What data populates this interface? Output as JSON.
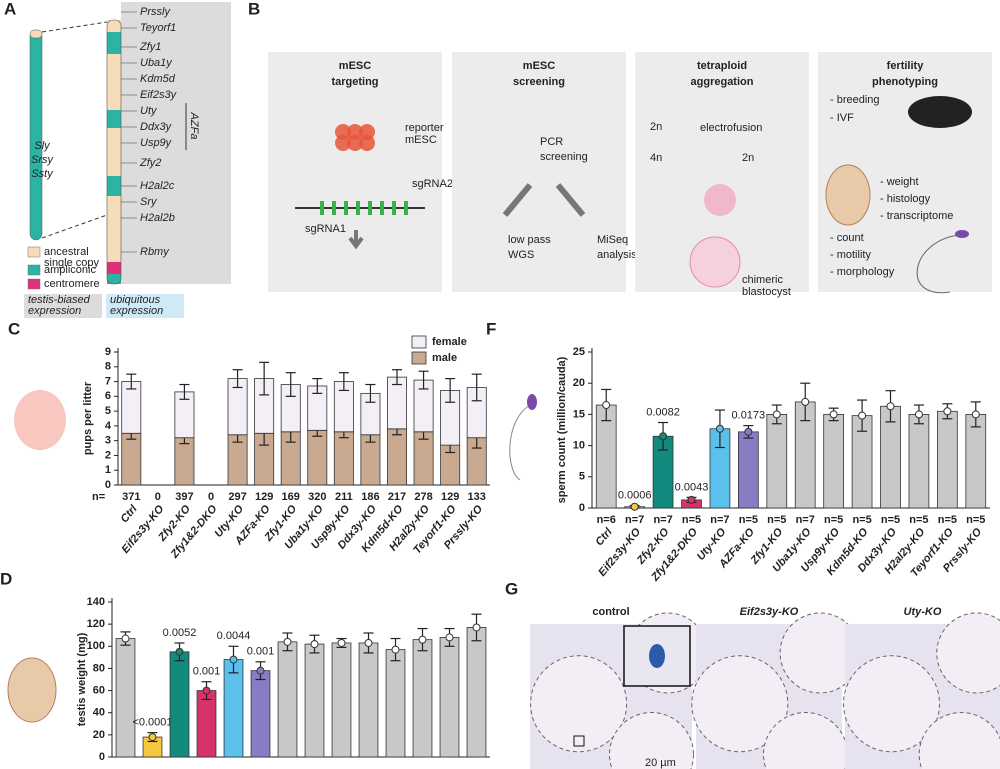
{
  "panels": {
    "A": {
      "label": "A",
      "left_genes": [
        "Sly",
        "Srsy",
        "Ssty"
      ],
      "genes": [
        {
          "name": "Prssly",
          "color": "#222222"
        },
        {
          "name": "Teyorf1",
          "color": "#222222"
        },
        {
          "name": "Zfy1",
          "color": "#222222"
        },
        {
          "name": "Uba1y",
          "color": "#222222"
        },
        {
          "name": "Kdm5d",
          "color": "#3aa8e0"
        },
        {
          "name": "Eif2s3y",
          "color": "#3aa8e0"
        },
        {
          "name": "Uty",
          "color": "#3aa8e0"
        },
        {
          "name": "Ddx3y",
          "color": "#3aa8e0"
        },
        {
          "name": "Usp9y",
          "color": "#222222"
        },
        {
          "name": "Zfy2",
          "color": "#222222"
        },
        {
          "name": "H2al2c",
          "color": "#222222"
        },
        {
          "name": "Sry",
          "color": "#222222"
        },
        {
          "name": "H2al2b",
          "color": "#222222"
        },
        {
          "name": "Rbmy",
          "color": "#222222"
        }
      ],
      "region": "AZFa",
      "legend": [
        {
          "lines": [
            "ancestral",
            "single copy"
          ],
          "color": "#f6dcb8"
        },
        {
          "lines": [
            "ampliconic"
          ],
          "color": "#2bb3a3"
        },
        {
          "lines": [
            "centromere"
          ],
          "color": "#e0307a"
        }
      ],
      "expression": [
        {
          "lines": [
            "testis-biased",
            "expression"
          ],
          "color": "#dcdcdc"
        },
        {
          "lines": [
            "ubiquitous",
            "expression"
          ],
          "color": "#cfe9f7"
        }
      ]
    },
    "B": {
      "label": "B",
      "steps": [
        {
          "title": [
            "mESC",
            "targeting"
          ],
          "texts": [
            "reporter",
            "mESC",
            "sgRNA2",
            "sgRNA1"
          ]
        },
        {
          "title": [
            "mESC",
            "screening"
          ],
          "texts": [
            "PCR",
            "screening",
            "low pass",
            "WGS",
            "MiSeq",
            "analysis"
          ]
        },
        {
          "title": [
            "tetraploid",
            "aggregation"
          ],
          "texts": [
            "2n",
            "electrofusion",
            "4n",
            "2n",
            "chimeric",
            "blastocyst"
          ]
        },
        {
          "title": [
            "fertility",
            "phenotyping"
          ],
          "texts": [
            "- breeding",
            "- IVF",
            "- weight",
            "- histology",
            "- transcriptome",
            "- count",
            "- motility",
            "- morphology"
          ]
        }
      ]
    },
    "G": {
      "label": "G",
      "images": [
        "control",
        "Eif2s3y-KO",
        "Uty-KO"
      ],
      "scale_bar": "20 µm"
    }
  },
  "chart_data": [
    {
      "type": "stacked_bar",
      "panel_label": "C",
      "ylabel": "pups per litter",
      "categories": [
        "Ctrl",
        "Eif2s3y-KO",
        "Zfy2-KO",
        "Zfy1&2-DKO",
        "Uty-KO",
        "AZFa-KO",
        "Zfy1-KO",
        "Uba1y-KO",
        "Usp9y-KO",
        "Ddx3y-KO",
        "Kdm5d-KO",
        "H2al2y-KO",
        "Teyorf1-KO",
        "Prssly-KO"
      ],
      "n_label": "n=",
      "n": [
        371,
        0,
        397,
        0,
        297,
        129,
        169,
        320,
        211,
        186,
        217,
        278,
        129,
        133
      ],
      "series": [
        {
          "name": "female",
          "color": "#f4eff7",
          "values": [
            3.5,
            null,
            3.1,
            null,
            3.8,
            3.7,
            3.2,
            3.0,
            3.4,
            2.8,
            3.5,
            3.5,
            3.7,
            3.4
          ],
          "errors": [
            0.5,
            null,
            0.5,
            null,
            0.6,
            1.1,
            0.8,
            0.5,
            0.6,
            0.6,
            0.5,
            0.6,
            0.8,
            0.9
          ]
        },
        {
          "name": "male",
          "color": "#c9aa90",
          "values": [
            3.5,
            null,
            3.2,
            null,
            3.4,
            3.5,
            3.6,
            3.7,
            3.6,
            3.4,
            3.8,
            3.6,
            2.7,
            3.2
          ],
          "errors": [
            0.4,
            null,
            0.4,
            null,
            0.5,
            0.8,
            0.7,
            0.4,
            0.4,
            0.5,
            0.4,
            0.5,
            0.5,
            0.7
          ]
        }
      ],
      "ylim": [
        0,
        9
      ],
      "yticks": [
        0,
        1,
        2,
        3,
        4,
        5,
        6,
        7,
        8,
        9
      ],
      "legend": "top-right"
    },
    {
      "type": "bar",
      "panel_label": "F",
      "ylabel": "sperm count (million/cauda)",
      "categories": [
        "Ctrl",
        "Eif2s3y-KO",
        "Zfy2-KO",
        "Zfy1&2-DKO",
        "Uty-KO",
        "AZFa-KO",
        "Zfy1-KO",
        "Uba1y-KO",
        "Usp9y-KO",
        "Kdm5d-KO",
        "Ddx3y-KO",
        "H2al2y-KO",
        "Teyorf1-KO",
        "Prssly-KO"
      ],
      "n_labels": [
        "n=6",
        "n=7",
        "n=7",
        "n=5",
        "n=7",
        "n=5",
        "n=5",
        "n=7",
        "n=5",
        "n=5",
        "n=5",
        "n=5",
        "n=5",
        "n=5"
      ],
      "values": [
        16.5,
        0.2,
        11.5,
        1.3,
        12.7,
        12.2,
        15.0,
        17.0,
        15.0,
        14.8,
        16.3,
        15.0,
        15.5,
        15.0
      ],
      "errors": [
        2.5,
        0.2,
        2.2,
        0.4,
        3.0,
        1.0,
        1.5,
        3.0,
        1.0,
        2.5,
        2.5,
        1.5,
        1.2,
        2.0
      ],
      "colors": [
        "#c8c8c8",
        "#f5c842",
        "#138a7e",
        "#d6336c",
        "#5bc0eb",
        "#8a7cc4",
        "#c8c8c8",
        "#c8c8c8",
        "#c8c8c8",
        "#c8c8c8",
        "#c8c8c8",
        "#c8c8c8",
        "#c8c8c8",
        "#c8c8c8"
      ],
      "annotations": [
        null,
        "0.0006",
        "0.0082",
        "0.0043",
        null,
        "0.0173",
        null,
        null,
        null,
        null,
        null,
        null,
        null,
        null
      ],
      "ylim": [
        0,
        25
      ],
      "yticks": [
        0,
        5,
        10,
        15,
        20,
        25
      ]
    },
    {
      "type": "bar",
      "panel_label": "D",
      "ylabel": "testis weight (mg)",
      "values": [
        107,
        18,
        95,
        60,
        88,
        78,
        104,
        102,
        103,
        103,
        97,
        106,
        108,
        117
      ],
      "errors": [
        6,
        4,
        8,
        8,
        12,
        8,
        8,
        8,
        4,
        9,
        10,
        10,
        8,
        12
      ],
      "colors": [
        "#c8c8c8",
        "#f5c842",
        "#138a7e",
        "#d6336c",
        "#5bc0eb",
        "#8a7cc4",
        "#c8c8c8",
        "#c8c8c8",
        "#c8c8c8",
        "#c8c8c8",
        "#c8c8c8",
        "#c8c8c8",
        "#c8c8c8",
        "#c8c8c8"
      ],
      "annotations": [
        null,
        "<0.0001",
        "0.0052",
        "0.001",
        "0.0044",
        "0.001",
        null,
        null,
        null,
        null,
        null,
        null,
        null,
        null
      ],
      "ylim": [
        0,
        140
      ],
      "yticks": [
        0,
        20,
        40,
        60,
        80,
        100,
        120,
        140
      ]
    }
  ]
}
